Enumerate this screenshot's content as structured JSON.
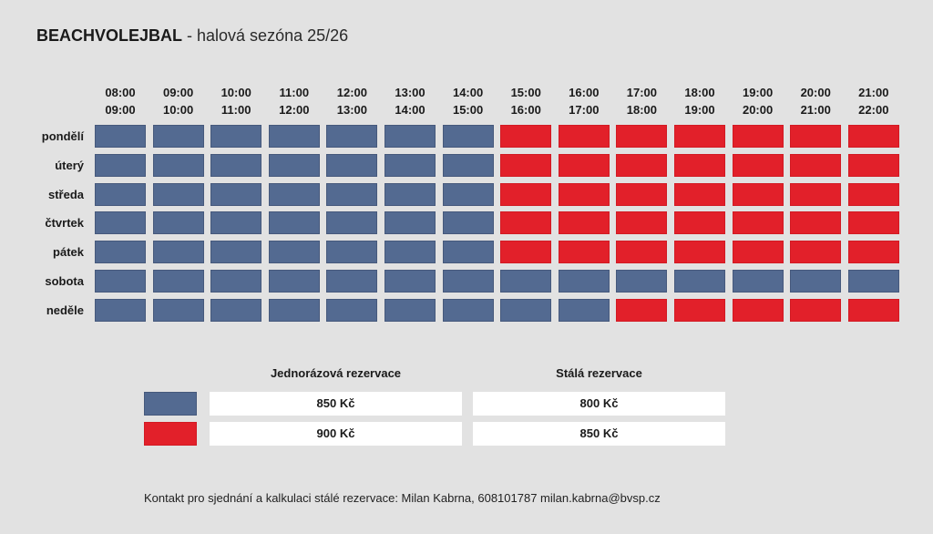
{
  "title": {
    "bold": "BEACHVOLEJBAL",
    "rest": " - halová sezóna 25/26"
  },
  "hours": [
    {
      "from": "08:00",
      "to": "09:00"
    },
    {
      "from": "09:00",
      "to": "10:00"
    },
    {
      "from": "10:00",
      "to": "11:00"
    },
    {
      "from": "11:00",
      "to": "12:00"
    },
    {
      "from": "12:00",
      "to": "13:00"
    },
    {
      "from": "13:00",
      "to": "14:00"
    },
    {
      "from": "14:00",
      "to": "15:00"
    },
    {
      "from": "15:00",
      "to": "16:00"
    },
    {
      "from": "16:00",
      "to": "17:00"
    },
    {
      "from": "17:00",
      "to": "18:00"
    },
    {
      "from": "18:00",
      "to": "19:00"
    },
    {
      "from": "19:00",
      "to": "20:00"
    },
    {
      "from": "20:00",
      "to": "21:00"
    },
    {
      "from": "21:00",
      "to": "22:00"
    }
  ],
  "days": [
    {
      "label": "pondělí",
      "slots": [
        "blue",
        "blue",
        "blue",
        "blue",
        "blue",
        "blue",
        "blue",
        "red",
        "red",
        "red",
        "red",
        "red",
        "red",
        "red"
      ]
    },
    {
      "label": "úterý",
      "slots": [
        "blue",
        "blue",
        "blue",
        "blue",
        "blue",
        "blue",
        "blue",
        "red",
        "red",
        "red",
        "red",
        "red",
        "red",
        "red"
      ]
    },
    {
      "label": "středa",
      "slots": [
        "blue",
        "blue",
        "blue",
        "blue",
        "blue",
        "blue",
        "blue",
        "red",
        "red",
        "red",
        "red",
        "red",
        "red",
        "red"
      ]
    },
    {
      "label": "čtvrtek",
      "slots": [
        "blue",
        "blue",
        "blue",
        "blue",
        "blue",
        "blue",
        "blue",
        "red",
        "red",
        "red",
        "red",
        "red",
        "red",
        "red"
      ]
    },
    {
      "label": "pátek",
      "slots": [
        "blue",
        "blue",
        "blue",
        "blue",
        "blue",
        "blue",
        "blue",
        "red",
        "red",
        "red",
        "red",
        "red",
        "red",
        "red"
      ]
    },
    {
      "label": "sobota",
      "slots": [
        "blue",
        "blue",
        "blue",
        "blue",
        "blue",
        "blue",
        "blue",
        "blue",
        "blue",
        "blue",
        "blue",
        "blue",
        "blue",
        "blue"
      ]
    },
    {
      "label": "neděle",
      "slots": [
        "blue",
        "blue",
        "blue",
        "blue",
        "blue",
        "blue",
        "blue",
        "blue",
        "blue",
        "red",
        "red",
        "red",
        "red",
        "red"
      ]
    }
  ],
  "colors": {
    "blue": "#536a91",
    "red": "#e2202a"
  },
  "legend": {
    "single_header": "Jednorázová rezervace",
    "permanent_header": "Stálá rezervace",
    "rows": [
      {
        "color": "blue",
        "single": "850 Kč",
        "permanent": "800 Kč"
      },
      {
        "color": "red",
        "single": "900 Kč",
        "permanent": "850 Kč"
      }
    ]
  },
  "contact": "Kontakt pro sjednání a kalkulaci stálé rezervace: Milan Kabrna, 608101787 milan.kabrna@bvsp.cz"
}
